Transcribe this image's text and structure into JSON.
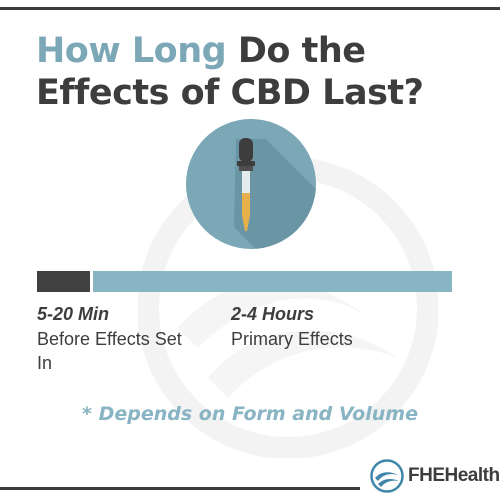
{
  "title": {
    "accent": "How Long",
    "line1_rest": " Do the",
    "line2": "Effects of CBD Last?"
  },
  "timeline": {
    "short_phase": {
      "heading": "5-20 Min",
      "description": "Before Effects Set In"
    },
    "long_phase": {
      "heading": "2-4 Hours",
      "description": "Primary Effects"
    }
  },
  "note": "* Depends on Form and Volume",
  "brand": {
    "name": "FHEHealth"
  },
  "colors": {
    "dark": "#3d3d3d",
    "accent": "#7ba7b7",
    "bar_light": "#88b4c3",
    "circle": "#7ba7b7",
    "oil": "#e8b04a"
  },
  "icons": {
    "center": "dropper-icon",
    "logo": "fhe-logo-icon",
    "watermark": "watermark-logo"
  }
}
